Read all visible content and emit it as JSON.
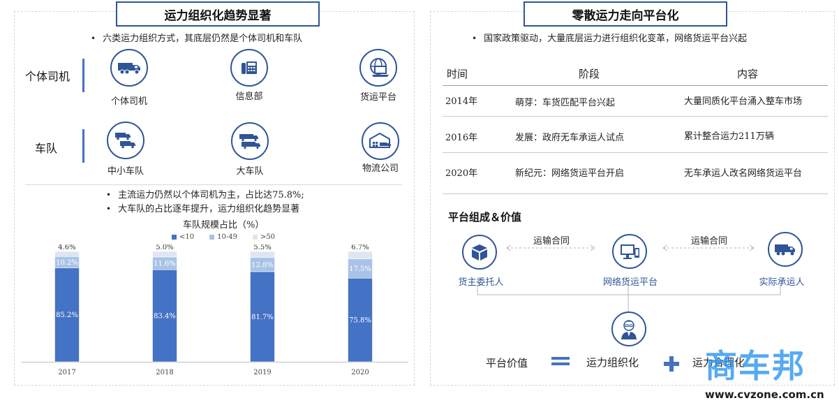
{
  "left": {
    "title": "运力组织化趋势显著",
    "top_bullet": "六类运力组织方式，其底层仍然是个体司机和车队",
    "rows": [
      {
        "label": "个体司机",
        "items": [
          {
            "label": "个体司机",
            "icon": "truck-icon"
          },
          {
            "label": "信息部",
            "icon": "phone-icon"
          },
          {
            "label": "货运平台",
            "icon": "globe-laptop-icon"
          }
        ]
      },
      {
        "label": "车队",
        "items": [
          {
            "label": "中小车队",
            "icon": "trucks-icon"
          },
          {
            "label": "大车队",
            "icon": "fleet-icon"
          },
          {
            "label": "物流公司",
            "icon": "warehouse-icon"
          }
        ]
      }
    ],
    "bullets2": [
      "主流运力仍然以个体司机为主，占比达75.8%;",
      "大车队的占比逐年提升，运力组织化趋势显著"
    ]
  },
  "chart_data": {
    "type": "bar",
    "stacked": true,
    "title": "车队规模占比（%）",
    "categories": [
      "2017",
      "2018",
      "2019",
      "2020"
    ],
    "series": [
      {
        "name": "<10",
        "values": [
          85.2,
          83.4,
          81.7,
          75.8
        ],
        "color": "#4472c4"
      },
      {
        "name": "10-49",
        "values": [
          10.2,
          11.6,
          12.8,
          17.5
        ],
        "color": "#a9c3e6"
      },
      {
        "name": ">50",
        "values": [
          4.6,
          5.0,
          5.5,
          6.7
        ],
        "color": "#dfe6f1"
      }
    ],
    "labels": [
      [
        "85.2%",
        "10.2%",
        "4.6%"
      ],
      [
        "83.4%",
        "11.6%",
        "5.0%"
      ],
      [
        "81.7%",
        "12.8%",
        "5.5%"
      ],
      [
        "75.8%",
        "17.5%",
        "6.7%"
      ]
    ],
    "ylim": [
      0,
      100
    ],
    "legend": "top",
    "grid": false
  },
  "right": {
    "title": "零散运力走向平台化",
    "top_bullet": "国家政策驱动，大量底层运力进行组织化变革，网络货运平台兴起",
    "table": {
      "headers": [
        "时间",
        "阶段",
        "内容"
      ],
      "rows": [
        [
          "2014年",
          "萌芽：车货匹配平台兴起",
          "大量同质化平台涌入整车市场"
        ],
        [
          "2016年",
          "发展：政府无车承运人试点",
          "累计整合运力211万辆"
        ],
        [
          "2020年",
          "新纪元：网络货运平台开启",
          "无车承运人改名网络货运平台"
        ]
      ]
    },
    "platform_title": "平台组成＆价值",
    "nodes": [
      "货主委托人",
      "网络货运平台",
      "实际承运人"
    ],
    "contracts": [
      "运输合同",
      "运输合同"
    ],
    "value_label": "平台价值",
    "value_items": [
      "运力组织化",
      "运力合理化"
    ]
  },
  "watermark": {
    "logo": "商车邦",
    "url": "www.cvzone.com.cn"
  }
}
